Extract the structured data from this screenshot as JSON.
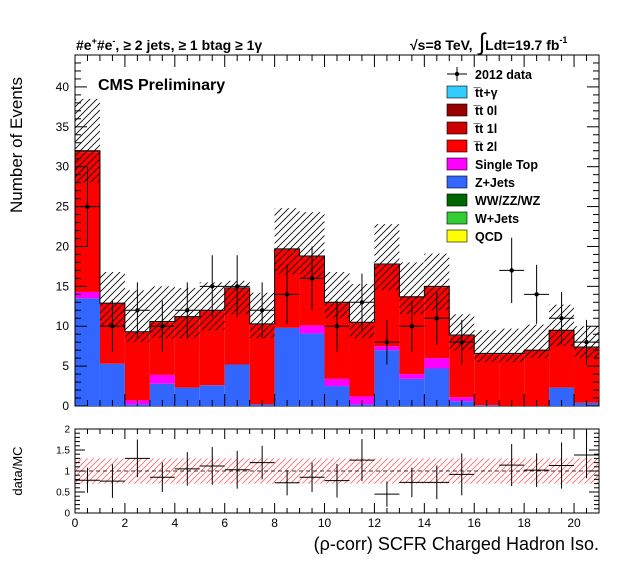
{
  "header": {
    "left_main": "#e",
    "left_sup1": "+",
    "left_main2": "#e",
    "left_sup2": "-",
    "left_rest": ", ≥ 2 jets, ≥ 1 btag ≥ 1γ",
    "right_sqrt": "√s=8 TeV,",
    "right_int": "∫",
    "right_lumi": "Ldt=19.7 fb",
    "right_lumi_sup": "-1"
  },
  "cms_label": "CMS Preliminary",
  "colors": {
    "ttgamma": "#33ccff",
    "tt0l": "#990000",
    "tt1l": "#cc0000",
    "tt2l": "#ff0000",
    "singletop": "#ff00ff",
    "zjets": "#3366ff",
    "diboson": "#006600",
    "wjets": "#33cc33",
    "qcd": "#ffff00",
    "band": "#ff6666"
  },
  "chart_data": [
    {
      "type": "bar",
      "stacked": true,
      "ylabel": "Number of Events",
      "xlim": [
        0,
        21
      ],
      "ylim": [
        0,
        44
      ],
      "yticks": [
        "0",
        "5",
        "10",
        "15",
        "20",
        "25",
        "30",
        "35",
        "40"
      ],
      "bin_edges": [
        0,
        1,
        2,
        3,
        4,
        5,
        6,
        7,
        8,
        9,
        10,
        11,
        12,
        13,
        14,
        15,
        16,
        17,
        18,
        19,
        20,
        21
      ],
      "legend_position": "top-right",
      "series": [
        {
          "name": "QCD",
          "color_key": "qcd",
          "values": [
            0,
            0,
            0,
            0,
            0,
            0,
            0,
            0,
            0,
            0,
            0,
            0,
            0,
            0,
            0,
            0,
            0,
            0,
            0,
            0,
            0
          ]
        },
        {
          "name": "W+Jets",
          "color_key": "wjets",
          "values": [
            0,
            0,
            0,
            0,
            0,
            0,
            0,
            0,
            0,
            0,
            0,
            0,
            0,
            0,
            0,
            0,
            0,
            0,
            0,
            0,
            0
          ]
        },
        {
          "name": "WW/ZZ/WZ",
          "color_key": "diboson",
          "values": [
            0,
            0,
            0,
            0,
            0,
            0,
            0,
            0,
            0,
            0,
            0,
            0,
            0,
            0,
            0,
            0,
            0,
            0,
            0,
            0,
            0
          ]
        },
        {
          "name": "Z+Jets",
          "color_key": "zjets",
          "values": [
            13.5,
            5.3,
            0.2,
            2.8,
            2.3,
            2.6,
            5.2,
            0.2,
            9.8,
            9.1,
            2.5,
            0.2,
            7.0,
            3.4,
            4.7,
            0.6,
            0.1,
            0,
            0,
            2.3,
            0.4
          ]
        },
        {
          "name": "Single Top",
          "color_key": "singletop",
          "values": [
            0.8,
            0,
            0.5,
            1.1,
            0,
            0,
            0,
            0,
            0,
            1.0,
            0.9,
            1.0,
            0.5,
            0.6,
            1.3,
            0.5,
            0,
            0,
            0,
            0,
            0
          ]
        },
        {
          "name": "t̅t 2l",
          "color_key": "tt2l",
          "values": [
            17.5,
            7.5,
            8.5,
            6.6,
            8.8,
            9.3,
            9.5,
            10.0,
            9.8,
            8.6,
            9.5,
            9.2,
            10.2,
            9.6,
            8.9,
            7.7,
            6.4,
            6.5,
            6.9,
            7.1,
            6.9
          ]
        },
        {
          "name": "t̅t 1l",
          "color_key": "tt1l",
          "values": [
            0.2,
            0.1,
            0.1,
            0.1,
            0.1,
            0.1,
            0.1,
            0.1,
            0.1,
            0.1,
            0.1,
            0.1,
            0.1,
            0.1,
            0.1,
            0.1,
            0.1,
            0.1,
            0.1,
            0.1,
            0.1
          ]
        },
        {
          "name": "t̅t 0l",
          "color_key": "tt0l",
          "values": [
            0,
            0,
            0,
            0,
            0,
            0,
            0,
            0,
            0,
            0,
            0,
            0,
            0,
            0,
            0,
            0,
            0,
            0,
            0,
            0,
            0
          ]
        },
        {
          "name": "t̅t+γ",
          "color_key": "ttgamma",
          "values": [
            0,
            0,
            0,
            0,
            0,
            0,
            0,
            0,
            0,
            0,
            0,
            0,
            0,
            0,
            0,
            0,
            0,
            0,
            0,
            0,
            0
          ]
        }
      ],
      "uncertainty_up": [
        38.5,
        16.8,
        14.5,
        15.0,
        14.8,
        15.5,
        15.7,
        14.2,
        24.8,
        24.3,
        16.8,
        15.3,
        22.8,
        18.0,
        19.1,
        11.5,
        9.5,
        9.7,
        10.2,
        12.7,
        10.0
      ],
      "uncertainty_down": [
        28.0,
        10.0,
        8.0,
        8.5,
        8.5,
        9.5,
        11.5,
        8.5,
        16.5,
        16.0,
        11.0,
        8.5,
        14.5,
        11.5,
        12.0,
        7.0,
        5.5,
        5.5,
        6.0,
        7.5,
        6.0
      ],
      "data": {
        "name": "2012 data",
        "x": [
          0.5,
          1.5,
          2.5,
          3.5,
          4.5,
          5.5,
          6.5,
          7.5,
          8.5,
          9.5,
          10.5,
          11.5,
          12.5,
          13.5,
          14.5,
          15.5,
          16.5,
          17.5,
          18.5,
          19.5,
          20.5
        ],
        "y": [
          25,
          10,
          12,
          10,
          12,
          15,
          15,
          12,
          14,
          16,
          10,
          13,
          8,
          10,
          11,
          8,
          0,
          17,
          14,
          11,
          8
        ],
        "yerr": [
          5.0,
          3.2,
          3.5,
          3.2,
          3.5,
          3.9,
          3.9,
          3.5,
          3.7,
          4.0,
          3.2,
          3.6,
          2.8,
          3.2,
          3.3,
          2.8,
          0,
          4.1,
          3.7,
          3.3,
          2.8
        ]
      }
    },
    {
      "type": "scatter",
      "xlabel": "(ρ-corr) SCFR Charged Hadron Iso.",
      "ylabel": "data/MC",
      "xlim": [
        0,
        21
      ],
      "ylim": [
        0,
        2
      ],
      "yticks": [
        "0",
        "0.5",
        "1",
        "1.5",
        "2"
      ],
      "xticks": [
        "0",
        "2",
        "4",
        "6",
        "8",
        "10",
        "12",
        "14",
        "16",
        "18",
        "20"
      ],
      "ratio": {
        "x": [
          0.5,
          1.5,
          2.5,
          3.5,
          4.5,
          5.5,
          6.5,
          7.5,
          8.5,
          9.5,
          10.5,
          11.5,
          12.5,
          13.5,
          14.5,
          15.5,
          17.5,
          18.5,
          19.5,
          20.5
        ],
        "y": [
          0.78,
          0.76,
          1.3,
          0.85,
          1.05,
          1.12,
          1.03,
          1.2,
          0.72,
          0.85,
          0.77,
          1.26,
          0.45,
          0.73,
          0.73,
          0.92,
          1.14,
          1.02,
          1.13,
          1.38
        ],
        "yerr": [
          0.3,
          0.4,
          0.45,
          0.35,
          0.4,
          0.45,
          0.45,
          0.4,
          0.3,
          0.35,
          0.4,
          0.5,
          0.3,
          0.35,
          0.4,
          0.5,
          0.5,
          0.4,
          0.55,
          0.55
        ]
      },
      "band_low": 0.7,
      "band_high": 1.3
    }
  ]
}
